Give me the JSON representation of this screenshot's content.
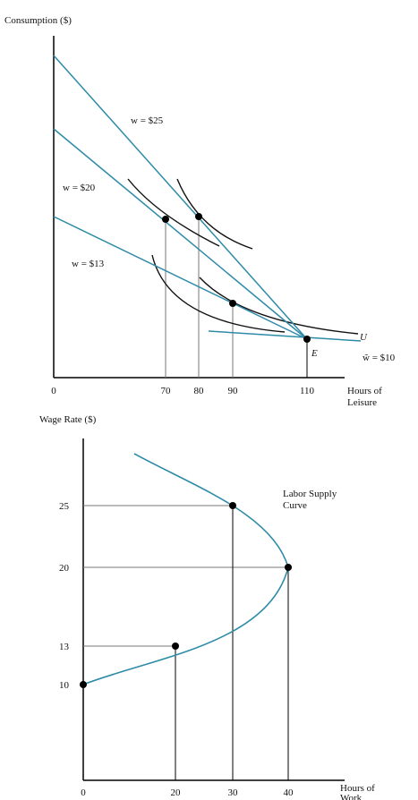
{
  "colors": {
    "budget_line": "#2e8ba8",
    "supply_curve": "#2e8ba8",
    "indifference_curve": "#111111",
    "guide_line": "#777777",
    "point": "#000000"
  },
  "chart_data": [
    {
      "type": "line",
      "ylabel": "Consumption ($)",
      "xlabel": "Hours of Leisure",
      "x_ticks": [
        "0",
        "70",
        "80",
        "90",
        "110"
      ],
      "xlim": [
        0,
        130
      ],
      "series": [
        {
          "name": "w = $25",
          "x": [
            0,
            110
          ],
          "y": [
            100,
            6
          ]
        },
        {
          "name": "w = $20",
          "x": [
            0,
            110
          ],
          "y": [
            76,
            6
          ]
        },
        {
          "name": "w = $13",
          "x": [
            0,
            110
          ],
          "y": [
            48,
            6
          ]
        },
        {
          "name": "w̃ = $10",
          "x": [
            75,
            130
          ],
          "y": [
            10,
            4.5
          ]
        }
      ],
      "indifference_curves": [
        {
          "x": [
            26,
            40,
            55,
            70,
            83
          ],
          "y": [
            59,
            50,
            41,
            34,
            28
          ]
        },
        {
          "x": [
            49,
            58,
            70,
            80,
            93
          ],
          "y": [
            60,
            50,
            41,
            34,
            28
          ]
        },
        {
          "x": [
            49,
            55,
            65,
            79,
            96,
            114
          ],
          "y": [
            27,
            21.5,
            17,
            13,
            10,
            8
          ]
        },
        {
          "x": [
            54,
            62,
            75,
            90,
            107,
            122
          ],
          "y": [
            25,
            20,
            15.5,
            12,
            10,
            8.5
          ]
        }
      ],
      "points": [
        {
          "x": 70,
          "y": 41
        },
        {
          "x": 80,
          "y": 41
        },
        {
          "x": 90,
          "y": 16
        },
        {
          "x": 110,
          "y": 6
        }
      ],
      "annotations": [
        "U",
        "E"
      ]
    },
    {
      "type": "line",
      "ylabel": "Wage Rate ($)",
      "xlabel": "Hours of Work",
      "x_ticks": [
        "0",
        "20",
        "30",
        "40"
      ],
      "y_ticks": [
        "10",
        "13",
        "20",
        "25"
      ],
      "xlim": [
        0,
        50
      ],
      "ylim": [
        0,
        30
      ],
      "series": [
        {
          "name": "Labor Supply Curve",
          "x": [
            0,
            10,
            20,
            30,
            40,
            36,
            30,
            21,
            10
          ],
          "y": [
            10,
            11.5,
            13,
            15.5,
            20,
            22.5,
            25,
            27.2,
            29
          ]
        }
      ],
      "points": [
        {
          "x": 0,
          "y": 10
        },
        {
          "x": 20,
          "y": 13
        },
        {
          "x": 40,
          "y": 20
        },
        {
          "x": 30,
          "y": 25
        }
      ]
    }
  ]
}
